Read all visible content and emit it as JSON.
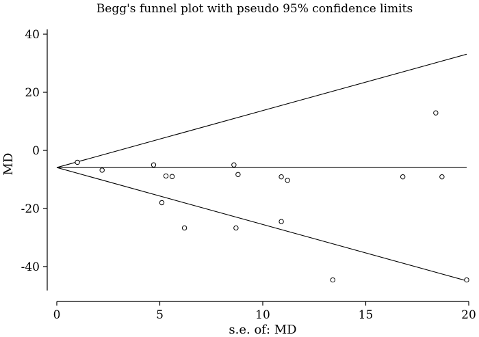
{
  "chart_data": {
    "type": "scatter",
    "title": "Begg's funnel plot with pseudo 95% confidence limits",
    "xlabel": "s.e. of: MD",
    "ylabel": "MD",
    "xlim": [
      0,
      20
    ],
    "ylim": [
      -50,
      45
    ],
    "xticks": [
      0,
      5,
      10,
      15,
      20
    ],
    "yticks": [
      -40,
      -20,
      0,
      20,
      40
    ],
    "pooled_estimate": -5.9,
    "confidence_lines": {
      "upper": [
        [
          0,
          -5.9
        ],
        [
          19.9,
          33.1
        ]
      ],
      "lower": [
        [
          0,
          -5.9
        ],
        [
          19.9,
          -44.9
        ]
      ]
    },
    "points": [
      {
        "x": 1.0,
        "y": -4.1
      },
      {
        "x": 2.2,
        "y": -6.8
      },
      {
        "x": 4.7,
        "y": -5.0
      },
      {
        "x": 5.1,
        "y": -18.0
      },
      {
        "x": 5.3,
        "y": -8.8
      },
      {
        "x": 5.6,
        "y": -9.0
      },
      {
        "x": 6.2,
        "y": -26.7
      },
      {
        "x": 8.6,
        "y": -5.0
      },
      {
        "x": 8.7,
        "y": -26.7
      },
      {
        "x": 8.8,
        "y": -8.3
      },
      {
        "x": 10.9,
        "y": -24.5
      },
      {
        "x": 10.9,
        "y": -9.1
      },
      {
        "x": 11.2,
        "y": -10.3
      },
      {
        "x": 13.4,
        "y": -44.6
      },
      {
        "x": 16.8,
        "y": -9.1
      },
      {
        "x": 18.4,
        "y": 12.9
      },
      {
        "x": 18.7,
        "y": -9.1
      },
      {
        "x": 19.9,
        "y": -44.6
      }
    ]
  }
}
